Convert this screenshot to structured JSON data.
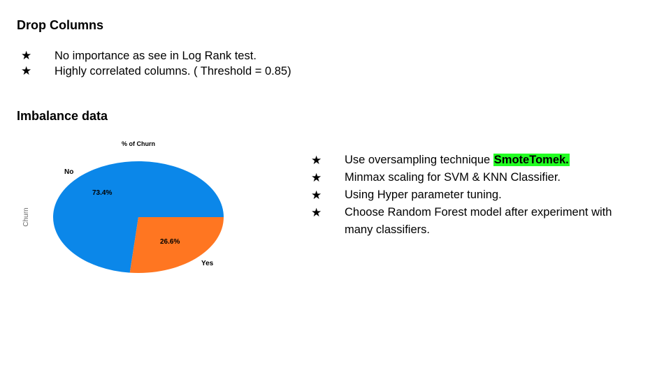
{
  "section1": {
    "title": "Drop Columns",
    "bullets": [
      "No importance as see in Log Rank test.",
      "Highly correlated columns. ( Threshold = 0.85)"
    ]
  },
  "section2": {
    "title": "Imbalance data",
    "bullets": [
      {
        "text": "Use oversampling technique  ",
        "highlight": "SmoteTomek."
      },
      {
        "text": "Minmax scaling for SVM & KNN Classifier."
      },
      {
        "text": "Using Hyper parameter tuning."
      },
      {
        "text": "Choose Random Forest model after experiment with many classifiers."
      }
    ],
    "bullet_symbol": "★",
    "highlight_color": "#22ff22"
  },
  "chart_data": {
    "type": "pie",
    "title": "% of Churn",
    "ylabel": "Churn",
    "slices": [
      {
        "label": "No",
        "value": 73.4,
        "text": "73.4%",
        "color": "#0b87e9"
      },
      {
        "label": "Yes",
        "value": 26.6,
        "text": "26.6%",
        "color": "#ff7621"
      }
    ]
  }
}
